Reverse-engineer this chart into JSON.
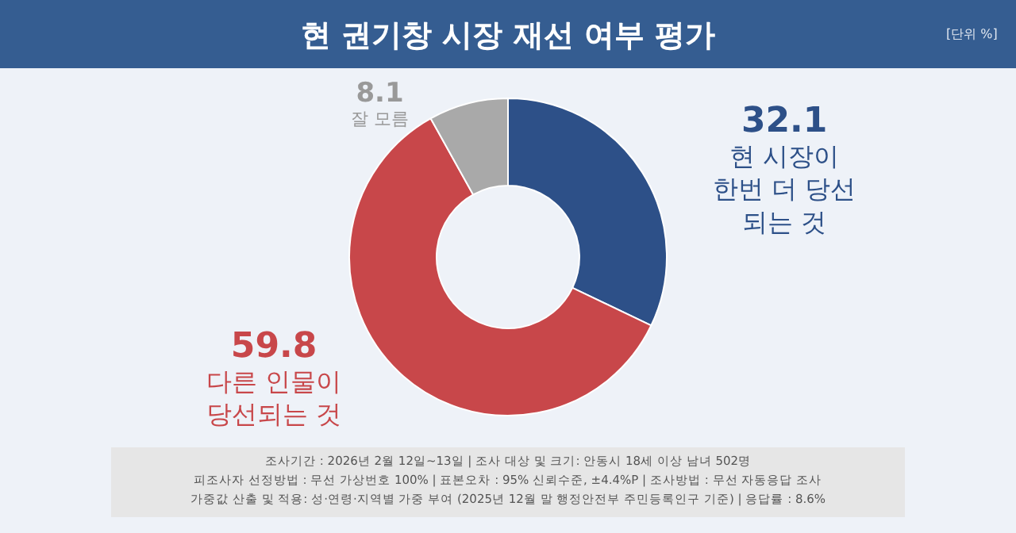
{
  "chart_data": {
    "type": "donut",
    "title": "현 권기창 시장 재선 여부 평가",
    "categories": [
      "현 시장이\n한번 더 당선\n되는 것",
      "다른 인물이\n당선되는 것",
      "잘 모름"
    ],
    "values": [
      32.1,
      59.8,
      8.1
    ],
    "colors": [
      "#2d5088",
      "#c8474a",
      "#a9a9a9"
    ],
    "data_labels": true,
    "legend": false,
    "annotations": [
      "[단위 %]",
      "조사기간 : 2026년 2월 12일~13일 | 조사 대상 및 크기: 안동시 18세 이상 남녀 502명",
      "피조사자 선정방법 : 무선 가상번호 100% | 표본오차 : 95% 신뢰수준, ±4.4%P | 조사방법 : 무선 자동응답 조사",
      "가중값 산출 및 적용: 성·연령·지역별 가중 부여 (2025년 12월 말 행정안전부 주민등록인구 기준) | 응답률 : 8.6%"
    ]
  }
}
